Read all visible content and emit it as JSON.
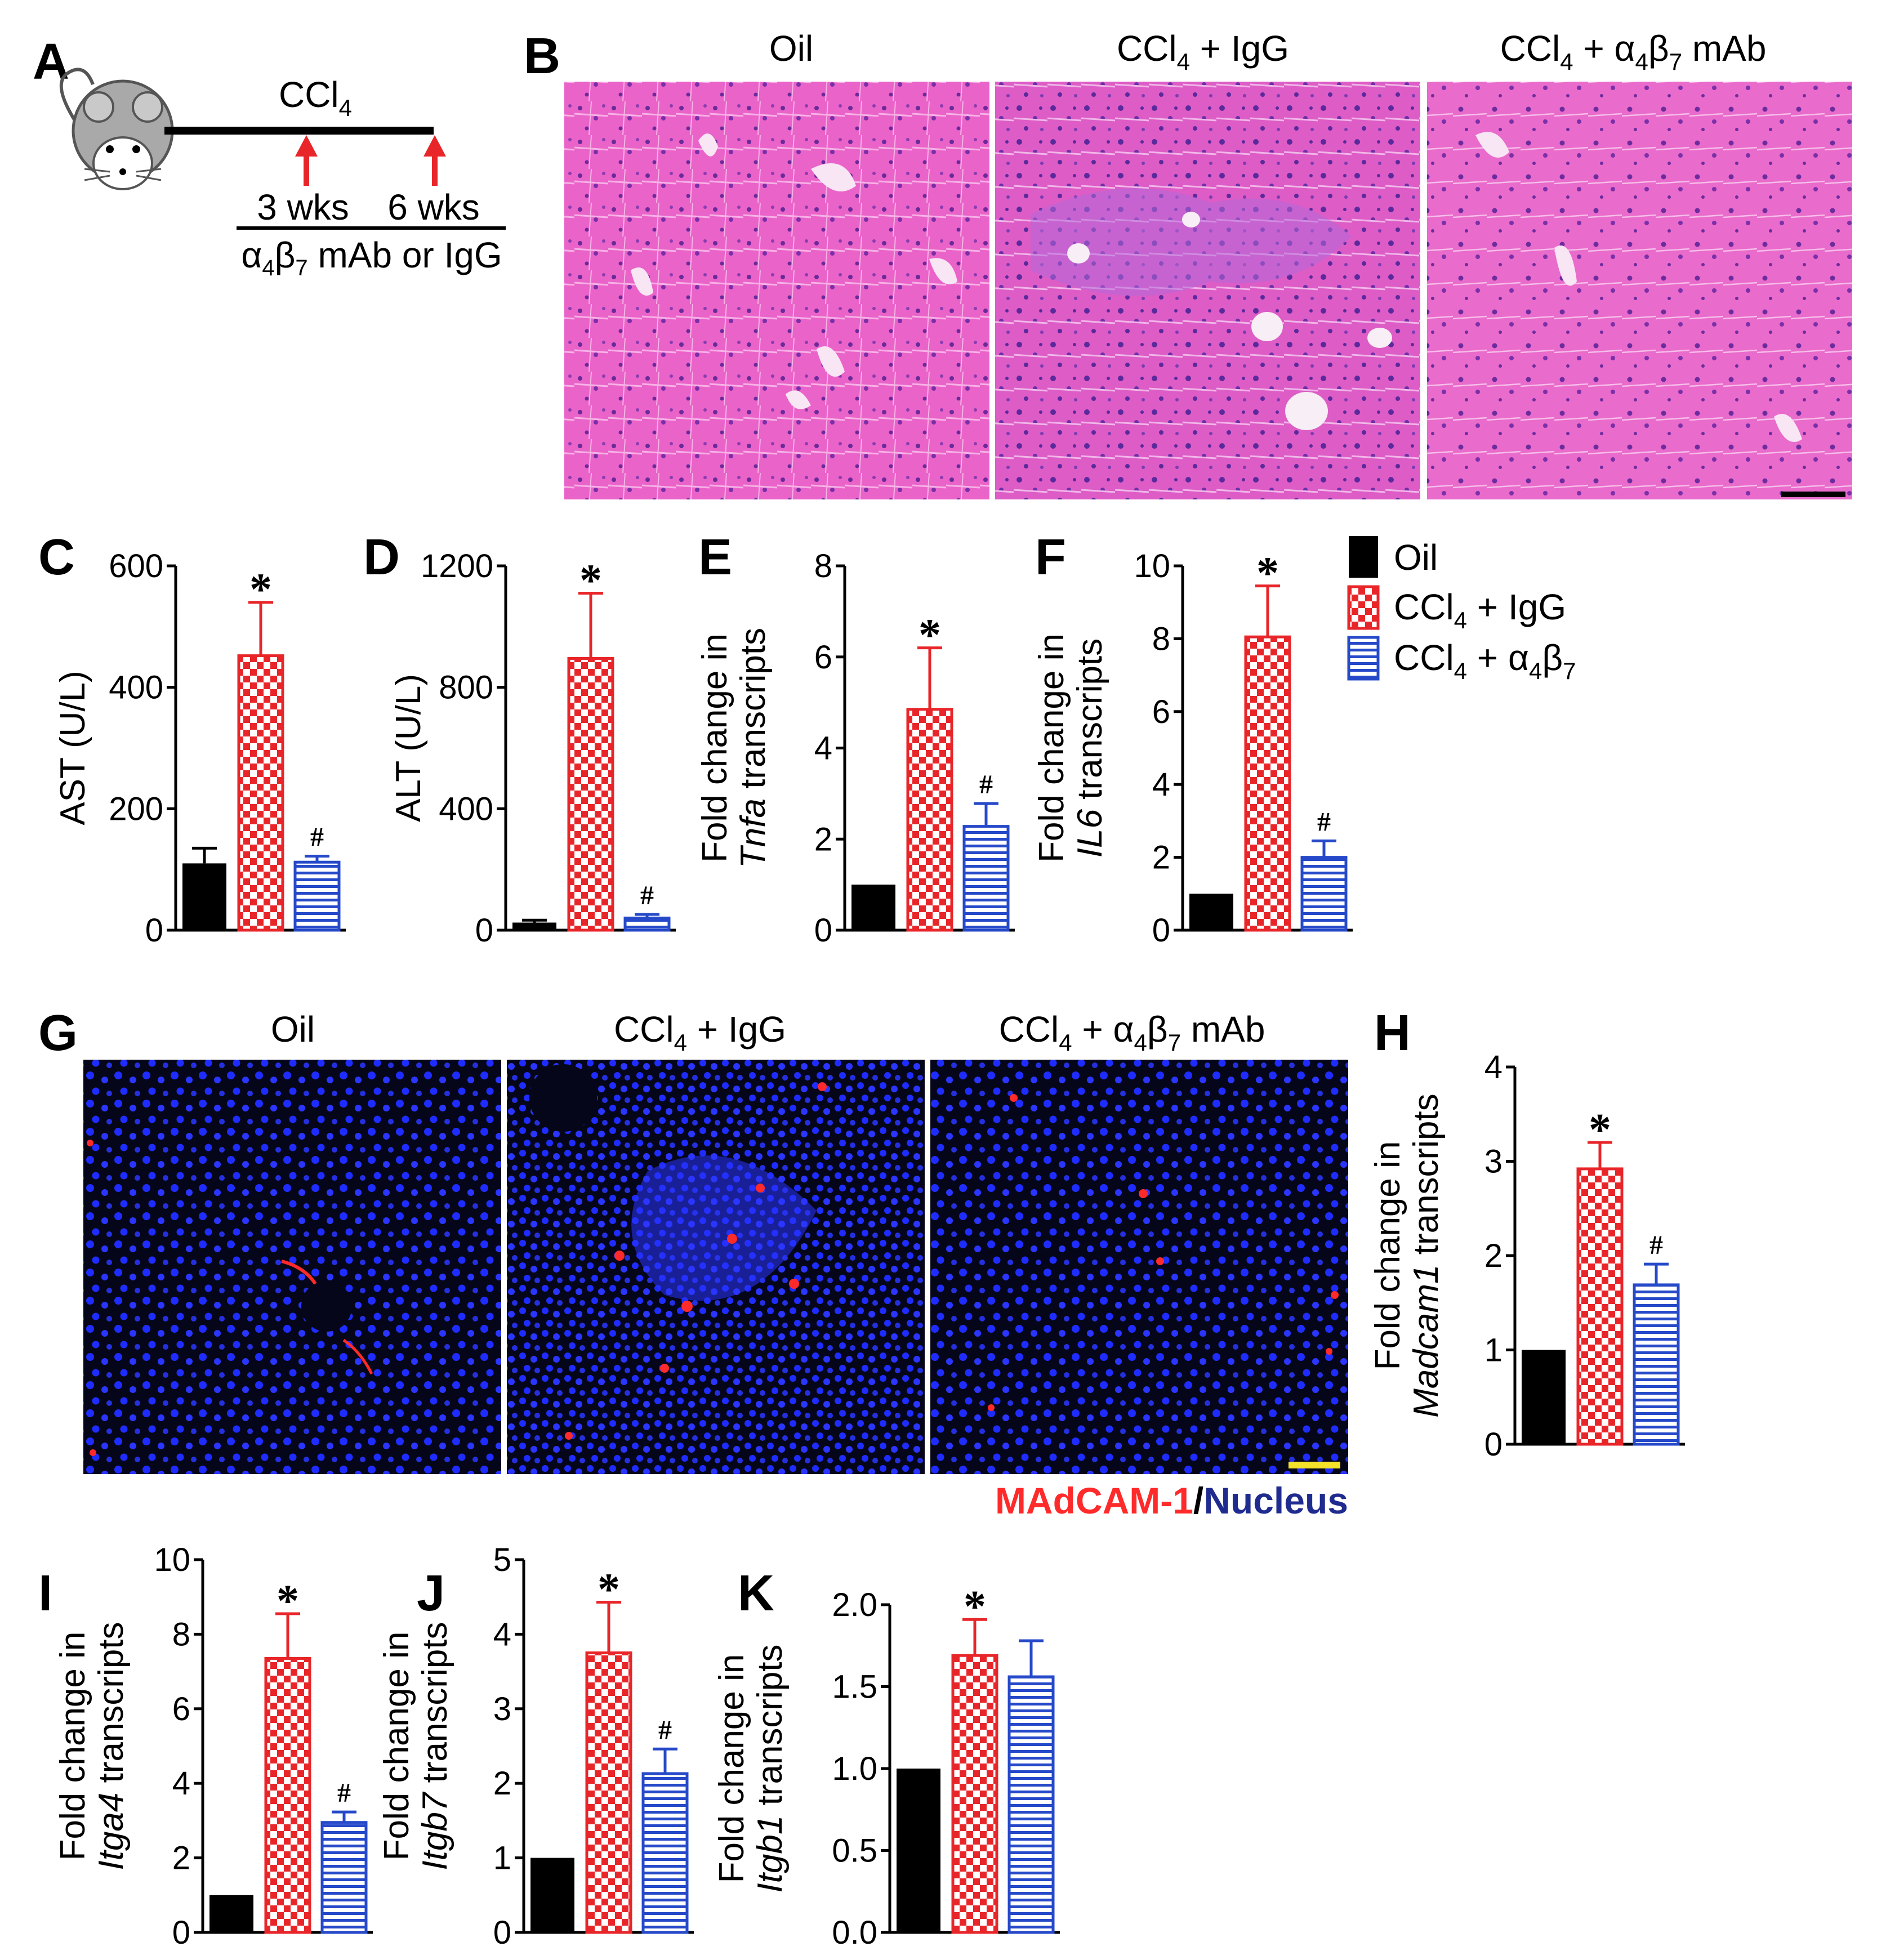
{
  "panels": {
    "A": "A",
    "B": "B",
    "C": "C",
    "D": "D",
    "E": "E",
    "F": "F",
    "G": "G",
    "H": "H",
    "I": "I",
    "J": "J",
    "K": "K"
  },
  "schematic": {
    "treatment": "CCl",
    "treatment_sub": "4",
    "week3": "3 wks",
    "week6": "6 wks",
    "antibody_alpha": "α",
    "antibody_sub4": "4",
    "antibody_beta": "β",
    "antibody_sub7": "7",
    "antibody_rest": " mAb or IgG"
  },
  "groups": {
    "oil": "Oil",
    "ccl_prefix": "CCl",
    "ccl_sub": "4",
    "igg_suffix": " + IgG",
    "mab_prefix": " + α",
    "mab_sub4": "4",
    "mab_beta": "β",
    "mab_sub7": "7",
    "mab_suffix": " mAb"
  },
  "legend": {
    "oil": "Oil",
    "igg_prefix": "CCl",
    "igg_sub": "4",
    "igg_suffix": " + IgG",
    "ab_prefix": "CCl",
    "ab_sub": "4",
    "ab_mid": " + α",
    "ab_sub4": "4",
    "ab_beta": "β",
    "ab_sub7": "7"
  },
  "stain_label": {
    "madcam": "MAdCAM-1",
    "slash": "/",
    "nucleus": "Nucleus"
  },
  "colors": {
    "oil": "#000000",
    "igg": "#e8262a",
    "ab": "#2549c9",
    "arrow": "#e8262a",
    "he_pink": "#e24fc2",
    "if_background": "#0a0a1a",
    "nucleus_blue": "#1e2cff",
    "madcam_red": "#ff2a2a",
    "nucleus_text": "#1f2b8f",
    "scale_yellow": "#f4e22a"
  },
  "chart_data": [
    {
      "panel": "C",
      "type": "bar",
      "ylabel": "AST (U/L)",
      "ylim": [
        0,
        600
      ],
      "yticks": [
        "0",
        "200",
        "400",
        "600"
      ],
      "categories": [
        "Oil",
        "CCl4 + IgG",
        "CCl4 + α4β7"
      ],
      "values": [
        110,
        452,
        112
      ],
      "errors": [
        25,
        88,
        10
      ],
      "annotations": [
        "",
        "*",
        "#"
      ]
    },
    {
      "panel": "D",
      "type": "bar",
      "ylabel": "ALT (U/L)",
      "ylim": [
        0,
        1200
      ],
      "yticks": [
        "0",
        "400",
        "800",
        "1200"
      ],
      "categories": [
        "Oil",
        "CCl4 + IgG",
        "CCl4 + α4β7"
      ],
      "values": [
        25,
        895,
        40
      ],
      "errors": [
        8,
        215,
        12
      ],
      "annotations": [
        "",
        "*",
        "#"
      ]
    },
    {
      "panel": "E",
      "type": "bar",
      "ylabel_line1": "Fold change in",
      "ylabel_gene": "Tnfa",
      "ylabel_rest": " transcripts",
      "ylim": [
        0,
        8
      ],
      "yticks": [
        "0",
        "2",
        "4",
        "6",
        "8"
      ],
      "categories": [
        "Oil",
        "CCl4 + IgG",
        "CCl4 + α4β7"
      ],
      "values": [
        1.0,
        4.85,
        2.28
      ],
      "errors": [
        0,
        1.35,
        0.5
      ],
      "annotations": [
        "",
        "*",
        "#"
      ]
    },
    {
      "panel": "F",
      "type": "bar",
      "ylabel_line1": "Fold change in",
      "ylabel_gene": "IL6",
      "ylabel_rest": " transcripts",
      "ylim": [
        0,
        10
      ],
      "yticks": [
        "0",
        "2",
        "4",
        "6",
        "8",
        "10"
      ],
      "categories": [
        "Oil",
        "CCl4 + IgG",
        "CCl4 + α4β7"
      ],
      "values": [
        1.0,
        8.05,
        2.0
      ],
      "errors": [
        0,
        1.4,
        0.45
      ],
      "annotations": [
        "",
        "*",
        "#"
      ]
    },
    {
      "panel": "H",
      "type": "bar",
      "ylabel_line1": "Fold change in",
      "ylabel_gene": "Madcam1",
      "ylabel_rest": " transcripts",
      "ylim": [
        0,
        4
      ],
      "yticks": [
        "0",
        "1",
        "2",
        "3",
        "4"
      ],
      "categories": [
        "Oil",
        "CCl4 + IgG",
        "CCl4 + α4β7"
      ],
      "values": [
        1.0,
        2.92,
        1.69
      ],
      "errors": [
        0,
        0.28,
        0.22
      ],
      "annotations": [
        "",
        "*",
        "#"
      ]
    },
    {
      "panel": "I",
      "type": "bar",
      "ylabel_line1": "Fold change in",
      "ylabel_gene": "Itga4",
      "ylabel_rest": " transcripts",
      "ylim": [
        0,
        10
      ],
      "yticks": [
        "0",
        "2",
        "4",
        "6",
        "8",
        "10"
      ],
      "categories": [
        "Oil",
        "CCl4 + IgG",
        "CCl4 + α4β7"
      ],
      "values": [
        1.0,
        7.35,
        2.95
      ],
      "errors": [
        0,
        1.2,
        0.28
      ],
      "annotations": [
        "",
        "*",
        "#"
      ]
    },
    {
      "panel": "J",
      "type": "bar",
      "ylabel_line1": "Fold change in",
      "ylabel_gene": "Itgb7",
      "ylabel_rest": " transcripts",
      "ylim": [
        0,
        5
      ],
      "yticks": [
        "0",
        "1",
        "2",
        "3",
        "4",
        "5"
      ],
      "categories": [
        "Oil",
        "CCl4 + IgG",
        "CCl4 + α4β7"
      ],
      "values": [
        1.0,
        3.75,
        2.13
      ],
      "errors": [
        0,
        0.68,
        0.33
      ],
      "annotations": [
        "",
        "*",
        "#"
      ]
    },
    {
      "panel": "K",
      "type": "bar",
      "ylabel_line1": "Fold change in",
      "ylabel_gene": "Itgb1",
      "ylabel_rest": " transcripts",
      "ylim": [
        0,
        2
      ],
      "yticks": [
        "0.0",
        "0.5",
        "1.0",
        "1.5",
        "2.0"
      ],
      "categories": [
        "Oil",
        "CCl4 + IgG",
        "CCl4 + α4β7"
      ],
      "values": [
        1.0,
        1.69,
        1.56
      ],
      "errors": [
        0,
        0.22,
        0.22
      ],
      "annotations": [
        "",
        "*",
        ""
      ]
    }
  ]
}
